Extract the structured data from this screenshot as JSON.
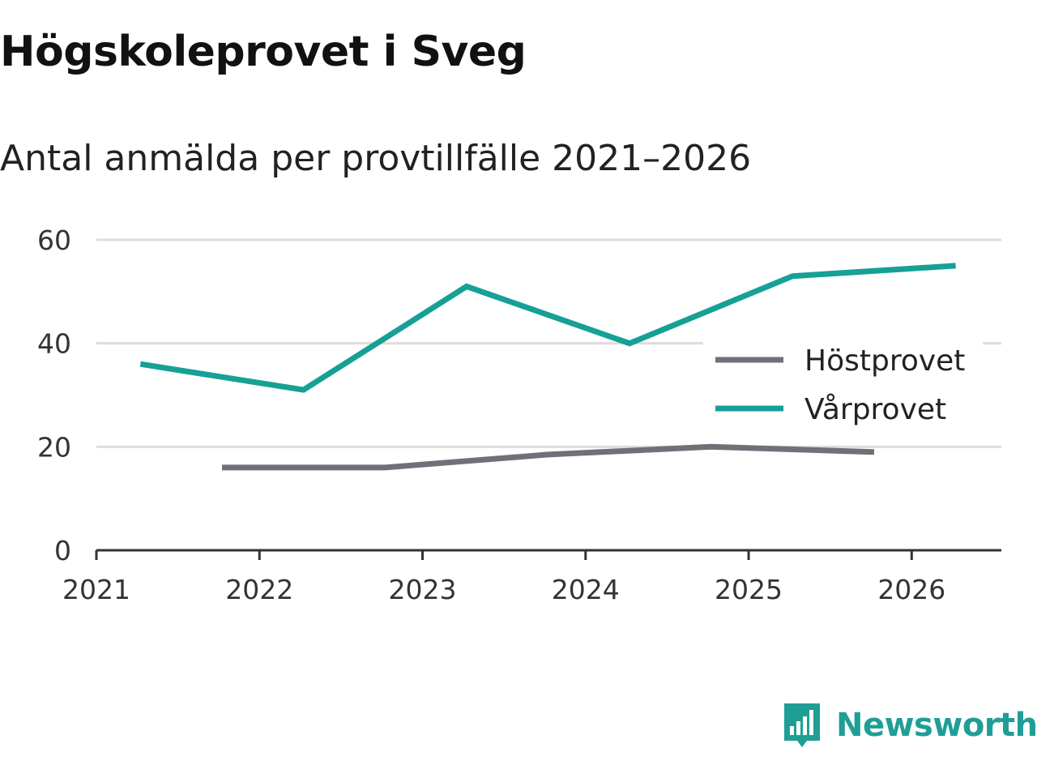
{
  "title": "Högskoleprovet i Sveg",
  "subtitle": "Antal anmälda per provtillfälle 2021–2026",
  "brand": {
    "name": "Newsworthy",
    "color": "#1f9e96",
    "icon": "newsworthy-logo-icon"
  },
  "chart_data": {
    "type": "line",
    "title": "Högskoleprovet i Sveg",
    "subtitle": "Antal anmälda per provtillfälle 2021–2026",
    "xlabel": "",
    "ylabel": "",
    "xlim": [
      2021,
      2026.55
    ],
    "ylim": [
      0,
      60
    ],
    "yticks": [
      0,
      20,
      40,
      60
    ],
    "xticks": [
      2021,
      2022,
      2023,
      2024,
      2025,
      2026
    ],
    "ytick_labels": [
      "0",
      "20",
      "40",
      "60"
    ],
    "xtick_labels": [
      "2021",
      "2022",
      "2023",
      "2024",
      "2025",
      "2026"
    ],
    "grid": true,
    "legend_position": "right",
    "series": [
      {
        "name": "Höstprovet",
        "color": "#707078",
        "x": [
          2021.77,
          2022.77,
          2023.77,
          2024.77,
          2025.77
        ],
        "y": [
          16,
          16,
          18.5,
          20,
          19
        ]
      },
      {
        "name": "Vårprovet",
        "color": "#16a096",
        "x": [
          2021.27,
          2022.27,
          2023.27,
          2024.27,
          2025.27,
          2026.27
        ],
        "y": [
          36,
          31,
          51,
          40,
          53,
          55
        ]
      }
    ]
  }
}
